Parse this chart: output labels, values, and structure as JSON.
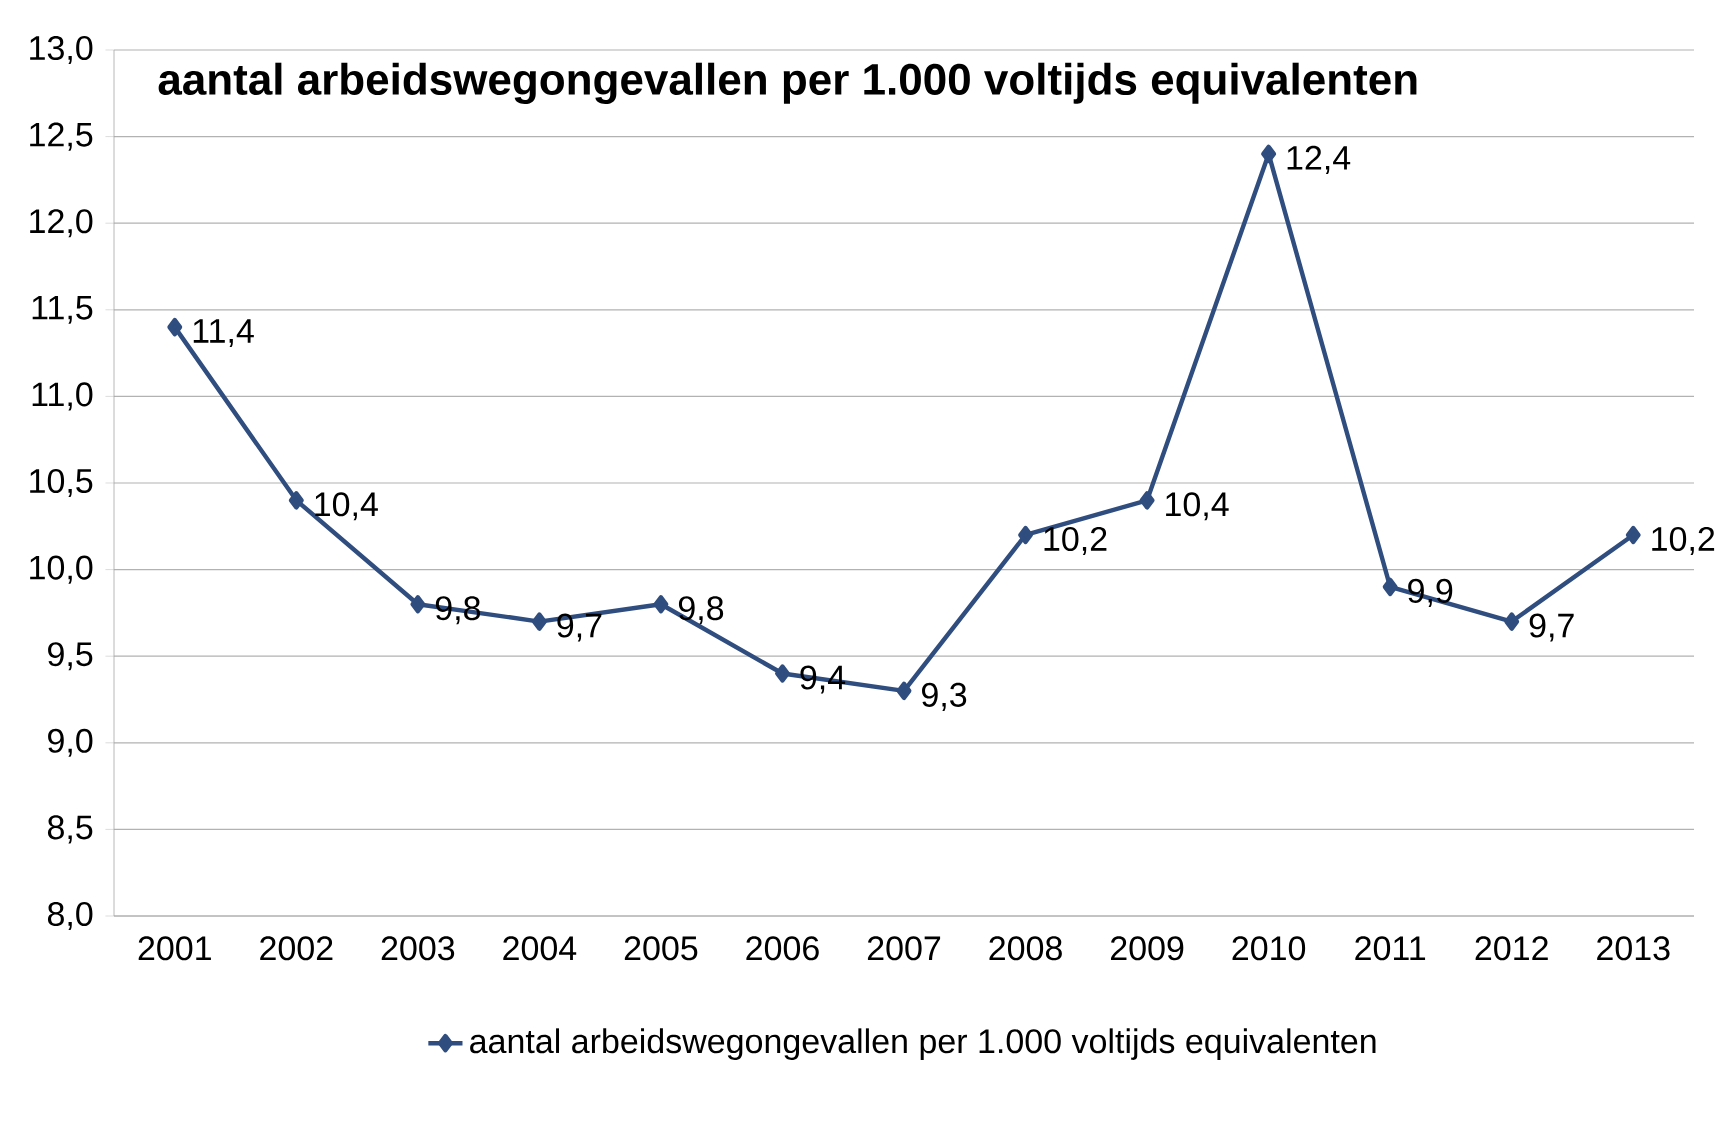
{
  "chart_data": {
    "type": "line",
    "title": "aantal arbeidswegongevallen per 1.000 voltijds equivalenten",
    "categories": [
      "2001",
      "2002",
      "2003",
      "2004",
      "2005",
      "2006",
      "2007",
      "2008",
      "2009",
      "2010",
      "2011",
      "2012",
      "2013"
    ],
    "series": [
      {
        "name": "aantal arbeidswegongevallen per 1.000 voltijds equivalenten",
        "color": "#2f4d7e",
        "values": [
          11.4,
          10.4,
          9.8,
          9.7,
          9.8,
          9.4,
          9.3,
          10.2,
          10.4,
          12.4,
          9.9,
          9.7,
          10.2
        ],
        "value_labels": [
          "11,4",
          "10,4",
          "9,8",
          "9,7",
          "9,8",
          "9,4",
          "9,3",
          "10,2",
          "10,4",
          "12,4",
          "9,9",
          "9,7",
          "10,2"
        ]
      }
    ],
    "ylim": [
      8.0,
      13.0
    ],
    "yticks": [
      {
        "value": 8.0,
        "label": "8,0"
      },
      {
        "value": 8.5,
        "label": "8,5"
      },
      {
        "value": 9.0,
        "label": "9,0"
      },
      {
        "value": 9.5,
        "label": "9,5"
      },
      {
        "value": 10.0,
        "label": "10,0"
      },
      {
        "value": 10.5,
        "label": "10,5"
      },
      {
        "value": 11.0,
        "label": "11,0"
      },
      {
        "value": 11.5,
        "label": "11,5"
      },
      {
        "value": 12.0,
        "label": "12,0"
      },
      {
        "value": 12.5,
        "label": "12,5"
      },
      {
        "value": 13.0,
        "label": "13,0"
      }
    ],
    "grid": "y",
    "legend": "bottom",
    "marker": "diamond",
    "line_style": "solid"
  }
}
